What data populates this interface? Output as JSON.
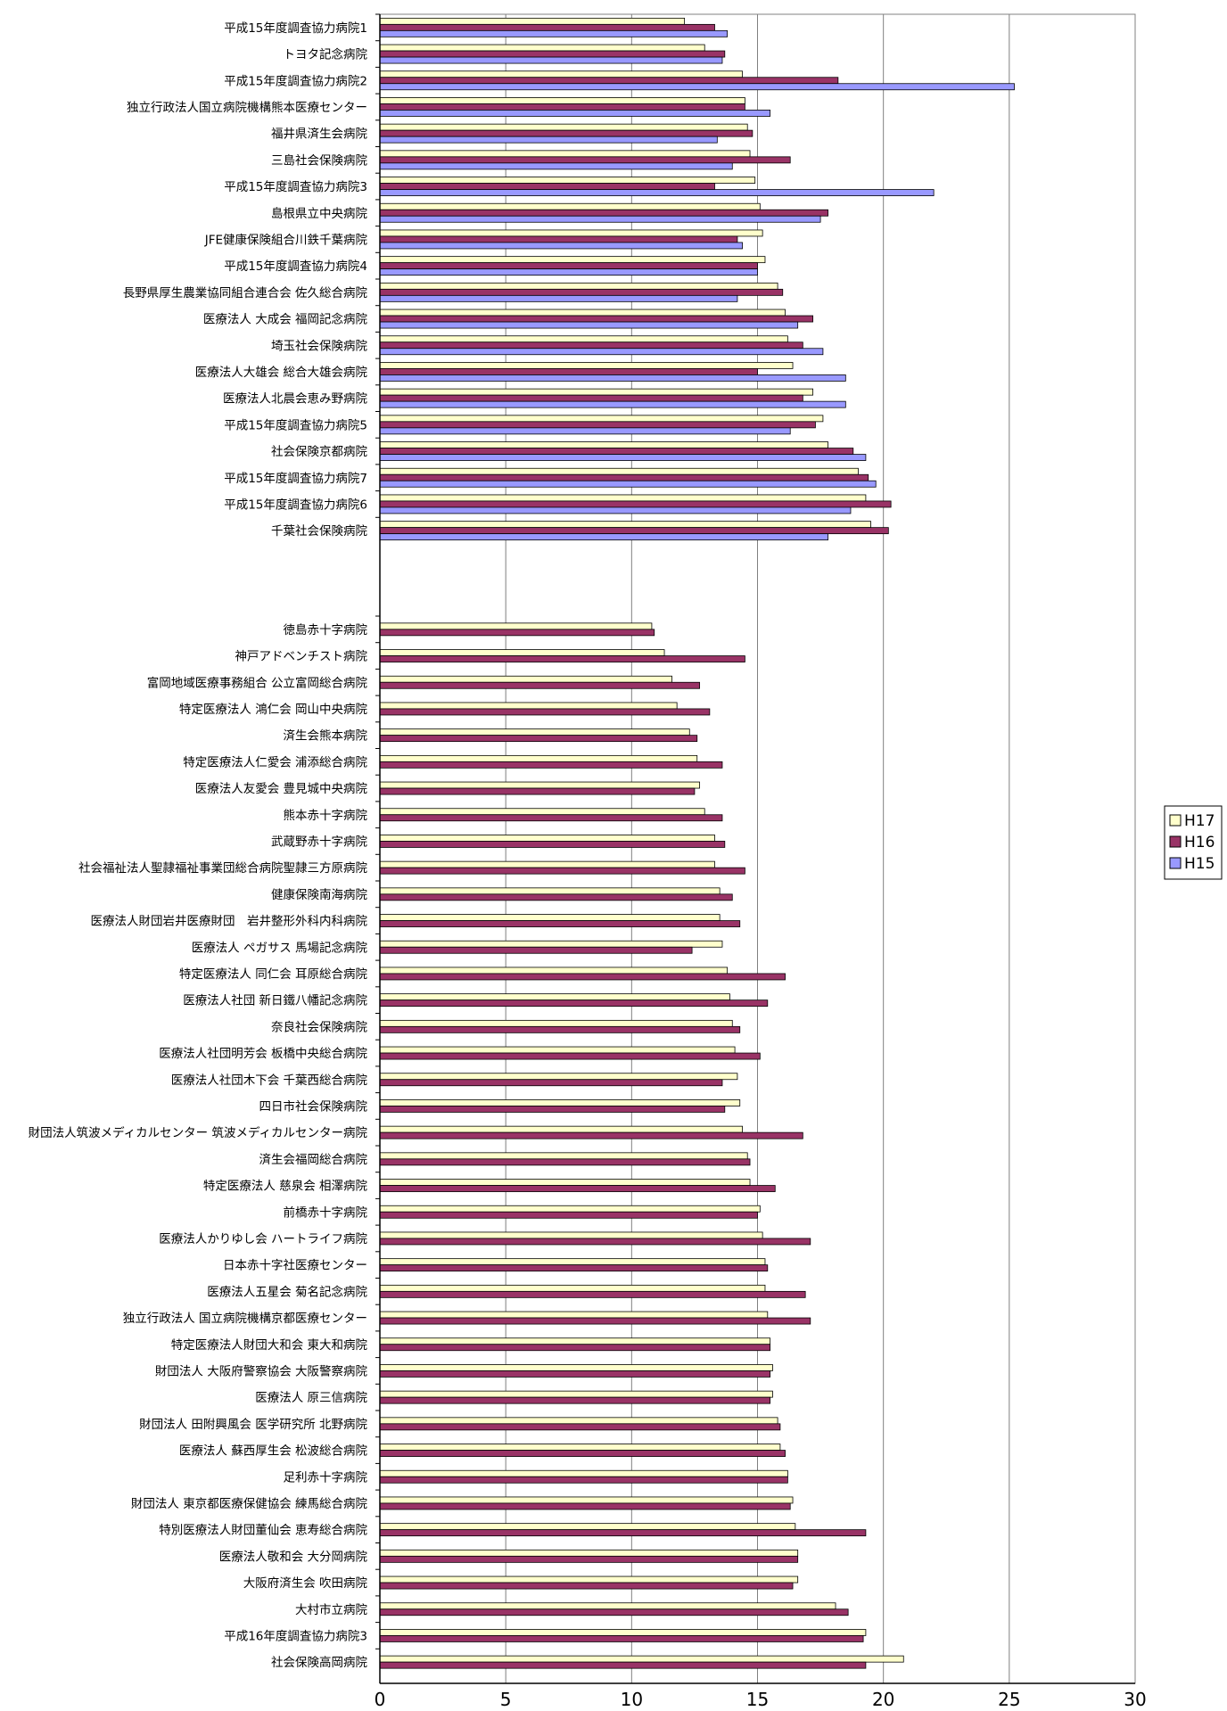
{
  "chart_data": {
    "type": "bar",
    "orientation": "horizontal",
    "title": "",
    "xlabel": "",
    "ylabel": "",
    "xlim": [
      0,
      30
    ],
    "x_ticks": [
      "0",
      "5",
      "10",
      "15",
      "20",
      "25",
      "30"
    ],
    "grid": "vertical gridlines",
    "legend_position": "right",
    "groups": [
      {
        "categories": [
          "平成15年度調査協力病院1",
          "トヨタ記念病院",
          "平成15年度調査協力病院2",
          "独立行政法人国立病院機構熊本医療センター",
          "福井県済生会病院",
          "三島社会保険病院",
          "平成15年度調査協力病院3",
          "島根県立中央病院",
          "JFE健康保険組合川鉄千葉病院",
          "平成15年度調査協力病院4",
          "長野県厚生農業協同組合連合会 佐久総合病院",
          "医療法人 大成会 福岡記念病院",
          "埼玉社会保険病院",
          "医療法人大雄会 総合大雄会病院",
          "医療法人北晨会恵み野病院",
          "平成15年度調査協力病院5",
          "社会保険京都病院",
          "平成15年度調査協力病院7",
          "平成15年度調査協力病院6",
          "千葉社会保険病院"
        ],
        "series": [
          {
            "name": "H17",
            "values": [
              12.1,
              12.9,
              14.4,
              14.5,
              14.6,
              14.7,
              14.9,
              15.1,
              15.2,
              15.3,
              15.8,
              16.1,
              16.2,
              16.4,
              17.2,
              17.6,
              17.8,
              19.0,
              19.3,
              19.5
            ]
          },
          {
            "name": "H16",
            "values": [
              13.3,
              13.7,
              18.2,
              14.5,
              14.8,
              16.3,
              13.3,
              17.8,
              14.2,
              15.0,
              16.0,
              17.2,
              16.8,
              15.0,
              16.8,
              17.3,
              18.8,
              19.4,
              20.3,
              20.2
            ]
          },
          {
            "name": "H15",
            "values": [
              13.8,
              13.6,
              25.2,
              15.5,
              13.4,
              14.0,
              22.0,
              17.5,
              14.4,
              15.0,
              14.2,
              16.6,
              17.6,
              18.5,
              18.5,
              16.3,
              19.3,
              19.7,
              18.7,
              17.8
            ]
          }
        ]
      },
      {
        "categories": [
          "徳島赤十字病院",
          "神戸アドベンチスト病院",
          "富岡地域医療事務組合 公立富岡総合病院",
          "特定医療法人 鴻仁会 岡山中央病院",
          "済生会熊本病院",
          "特定医療法人仁愛会 浦添総合病院",
          "医療法人友愛会 豊見城中央病院",
          "熊本赤十字病院",
          "武蔵野赤十字病院",
          "社会福祉法人聖隷福祉事業団総合病院聖隷三方原病院",
          "健康保険南海病院",
          "医療法人財団岩井医療財団　岩井整形外科内科病院",
          "医療法人 ペガサス 馬場記念病院",
          "特定医療法人 同仁会 耳原総合病院",
          "医療法人社団 新日鐵八幡記念病院",
          "奈良社会保険病院",
          "医療法人社団明芳会 板橋中央総合病院",
          "医療法人社団木下会 千葉西総合病院",
          "四日市社会保険病院",
          "財団法人筑波メディカルセンター 筑波メディカルセンター病院",
          "済生会福岡総合病院",
          "特定医療法人 慈泉会 相澤病院",
          "前橋赤十字病院",
          "医療法人かりゆし会 ハートライフ病院",
          "日本赤十字社医療センター",
          "医療法人五星会 菊名記念病院",
          "独立行政法人 国立病院機構京都医療センター",
          "特定医療法人財団大和会 東大和病院",
          "財団法人 大阪府警察協会 大阪警察病院",
          "医療法人 原三信病院",
          "財団法人 田附興風会 医学研究所 北野病院",
          "医療法人 蘇西厚生会 松波総合病院",
          "足利赤十字病院",
          "財団法人 東京都医療保健協会 練馬総合病院",
          "特別医療法人財団董仙会 恵寿総合病院",
          "医療法人敬和会 大分岡病院",
          "大阪府済生会 吹田病院",
          "大村市立病院",
          "平成16年度調査協力病院3",
          "社会保険高岡病院"
        ],
        "series": [
          {
            "name": "H17",
            "values": [
              10.8,
              11.3,
              11.6,
              11.8,
              12.3,
              12.6,
              12.7,
              12.9,
              13.3,
              13.3,
              13.5,
              13.5,
              13.6,
              13.8,
              13.9,
              14.0,
              14.1,
              14.2,
              14.3,
              14.4,
              14.6,
              14.7,
              15.1,
              15.2,
              15.3,
              15.3,
              15.4,
              15.5,
              15.6,
              15.6,
              15.8,
              15.9,
              16.2,
              16.4,
              16.5,
              16.6,
              16.6,
              18.1,
              19.3,
              20.8
            ]
          },
          {
            "name": "H16",
            "values": [
              10.9,
              14.5,
              12.7,
              13.1,
              12.6,
              13.6,
              12.5,
              13.6,
              13.7,
              14.5,
              14.0,
              14.3,
              12.4,
              16.1,
              15.4,
              14.3,
              15.1,
              13.6,
              13.7,
              16.8,
              14.7,
              15.7,
              15.0,
              17.1,
              15.4,
              16.9,
              17.1,
              15.5,
              15.5,
              15.5,
              15.9,
              16.1,
              16.2,
              16.3,
              19.3,
              16.6,
              16.4,
              18.6,
              19.2,
              19.3
            ]
          }
        ]
      }
    ],
    "colors": {
      "H17": "#ffffcc",
      "H16": "#993366",
      "H15": "#9999ff",
      "grid": "#808080",
      "axis": "#000000"
    }
  }
}
